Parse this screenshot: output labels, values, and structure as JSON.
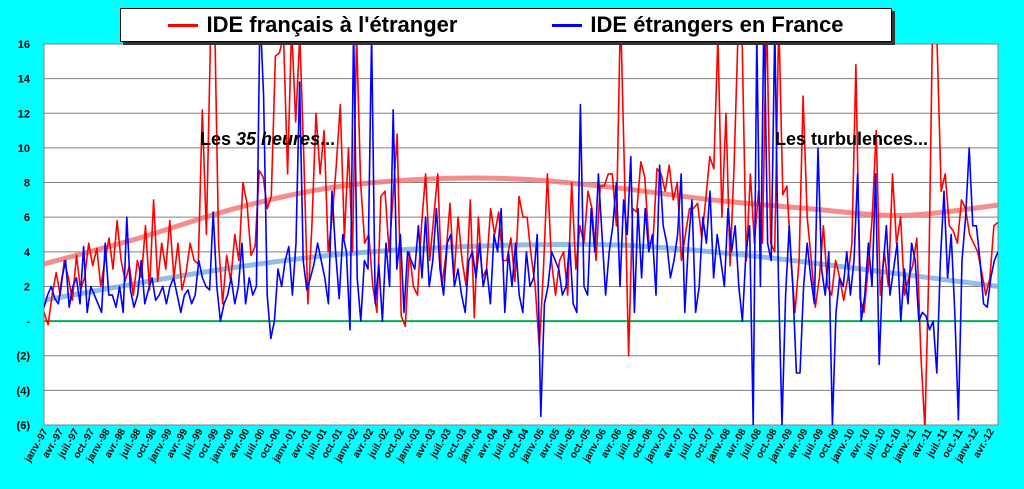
{
  "chart_data": {
    "type": "line",
    "legend_position": "top",
    "grid": true,
    "ylim": [
      -6,
      16
    ],
    "y_ticks": [
      {
        "value": 16,
        "label": "16"
      },
      {
        "value": 14,
        "label": "14"
      },
      {
        "value": 12,
        "label": "12"
      },
      {
        "value": 10,
        "label": "10"
      },
      {
        "value": 8,
        "label": "8"
      },
      {
        "value": 6,
        "label": "6"
      },
      {
        "value": 4,
        "label": "4"
      },
      {
        "value": 2,
        "label": "2"
      },
      {
        "value": 0,
        "label": "-"
      },
      {
        "value": -2,
        "label": "(2)"
      },
      {
        "value": -4,
        "label": "(4)"
      },
      {
        "value": -6,
        "label": "(6)"
      }
    ],
    "x_ticks": [
      "janv.-97",
      "avr.-97",
      "juil.-97",
      "oct.-97",
      "janv.-98",
      "avr.-98",
      "juil.-98",
      "oct.-98",
      "janv.-99",
      "avr.-99",
      "juil.-99",
      "oct.-99",
      "janv.-00",
      "avr.-00",
      "juil.-00",
      "oct.-00",
      "janv.-01",
      "avr.-01",
      "juil.-01",
      "oct.-01",
      "janv.-02",
      "avr.-02",
      "juil.-02",
      "oct.-02",
      "janv.-03",
      "avr.-03",
      "juil.-03",
      "oct.-03",
      "janv.-04",
      "avr.-04",
      "juil.-04",
      "oct.-04",
      "janv.-05",
      "avr.-05",
      "juil.-05",
      "oct.-05",
      "janv.-06",
      "avr.-06",
      "juil.-06",
      "oct.-06",
      "janv.-07",
      "avr.-07",
      "juil.-07",
      "oct.-07",
      "janv.-08",
      "avr.-08",
      "juil.-08",
      "oct.-08",
      "janv.-09",
      "avr.-09",
      "juil.-09",
      "oct.-09",
      "janv.-10",
      "avr.-10",
      "juil.-10",
      "oct.-10",
      "janv.-11",
      "avr.-11",
      "juil.-11",
      "oct.-11",
      "janv.-12",
      "avr.-12"
    ],
    "series": [
      {
        "name": "IDE français à l'étranger",
        "color": "#FF0000",
        "values": [
          0.5,
          -0.2,
          1.5,
          2.8,
          1.5,
          3.5,
          2.5,
          1.2,
          3.8,
          1.8,
          2.5,
          4.5,
          3.2,
          4.2,
          2.0,
          3.5,
          4.8,
          3.0,
          5.8,
          3.5,
          2.3,
          3.2,
          1.5,
          3.5,
          2.5,
          5.5,
          1.8,
          7.0,
          2.3,
          4.5,
          3.0,
          5.8,
          2.5,
          4.5,
          1.8,
          2.8,
          4.5,
          3.5,
          3.3,
          12.2,
          5.0,
          16.0,
          18.0,
          4.5,
          1.0,
          3.8,
          2.3,
          5.0,
          3.5,
          8.0,
          6.8,
          3.8,
          4.3,
          8.7,
          8.3,
          6.5,
          7.2,
          15.3,
          15.5,
          16.5,
          8.5,
          17.0,
          11.5,
          16.5,
          9.5,
          1.0,
          5.5,
          12.0,
          8.5,
          11.0,
          4.0,
          6.0,
          9.0,
          12.5,
          4.8,
          10.0,
          4.0,
          16.5,
          8.0,
          4.5,
          5.0,
          2.0,
          0.5,
          7.2,
          7.5,
          4.0,
          7.2,
          10.8,
          0.3,
          -0.3,
          4.0,
          2.0,
          1.5,
          5.5,
          8.5,
          3.5,
          6.0,
          8.5,
          2.0,
          3.8,
          6.8,
          2.5,
          6.0,
          3.5,
          2.0,
          7.0,
          0.2,
          6.0,
          2.5,
          3.0,
          6.5,
          5.0,
          6.3,
          3.5,
          3.5,
          4.8,
          2.3,
          7.2,
          6.0,
          6.0,
          3.8,
          2.0,
          -1.5,
          2.8,
          8.5,
          3.5,
          1.5,
          3.5,
          4.0,
          1.5,
          8.0,
          3.0,
          5.5,
          4.5,
          7.5,
          6.5,
          3.5,
          7.8,
          7.8,
          8.5,
          8.5,
          5.5,
          18.0,
          8.5,
          -2.0,
          6.5,
          6.3,
          9.2,
          8.3,
          4.5,
          4.5,
          8.8,
          8.5,
          7.5,
          9.0,
          7.0,
          8.0,
          3.5,
          5.0,
          6.5,
          6.5,
          6.8,
          4.8,
          7.0,
          9.5,
          8.8,
          16.5,
          6.0,
          12.0,
          3.2,
          9.0,
          17.0,
          16.0,
          3.5,
          8.5,
          4.5,
          7.5,
          4.5,
          18.0,
          4.5,
          4.0,
          17.5,
          7.3,
          7.8,
          3.5,
          0.5,
          3.5,
          13.0,
          6.0,
          3.5,
          0.8,
          2.5,
          5.5,
          2.0,
          1.5,
          3.5,
          2.5,
          1.2,
          2.5,
          4.5,
          14.8,
          1.3,
          0.5,
          3.0,
          6.0,
          11.0,
          1.5,
          4.0,
          2.0,
          8.5,
          4.5,
          6.0,
          1.5,
          2.5,
          3.2,
          4.8,
          -2.0,
          -6.2,
          3.3,
          19.0,
          16.0,
          7.5,
          8.5,
          5.5,
          5.2,
          4.5,
          7.0,
          6.5,
          5.0,
          4.5,
          4.0,
          2.8,
          1.5,
          2.5,
          5.5,
          5.7
        ]
      },
      {
        "name": "IDE étrangers en France",
        "color": "#0000FF",
        "values": [
          0.8,
          1.5,
          2.0,
          1.3,
          1.0,
          2.5,
          3.5,
          0.8,
          2.0,
          2.5,
          1.0,
          4.3,
          0.5,
          2.0,
          1.5,
          1.0,
          0.5,
          4.5,
          1.5,
          1.5,
          0.8,
          2.0,
          0.5,
          6.0,
          1.8,
          0.8,
          1.5,
          3.5,
          1.0,
          1.8,
          2.5,
          1.2,
          1.5,
          2.0,
          1.0,
          2.0,
          2.5,
          1.5,
          0.5,
          1.5,
          1.8,
          1.0,
          1.5,
          3.5,
          2.5,
          2.0,
          1.8,
          6.3,
          2.0,
          0.0,
          1.0,
          1.5,
          2.5,
          1.0,
          2.0,
          4.5,
          1.0,
          2.5,
          1.5,
          2.0,
          18.0,
          13.0,
          1.5,
          -1.0,
          0.0,
          3.0,
          2.0,
          3.5,
          4.3,
          1.5,
          4.5,
          13.8,
          3.5,
          1.8,
          2.5,
          3.3,
          4.5,
          3.5,
          2.5,
          1.0,
          7.5,
          4.0,
          1.3,
          5.0,
          4.0,
          -0.5,
          17.0,
          2.5,
          0.0,
          3.5,
          3.0,
          16.5,
          1.0,
          3.3,
          0.0,
          4.5,
          2.0,
          12.2,
          3.0,
          5.0,
          0.5,
          4.0,
          3.5,
          3.0,
          5.5,
          2.5,
          6.0,
          2.0,
          3.5,
          6.5,
          3.0,
          1.5,
          4.5,
          5.0,
          2.0,
          3.0,
          1.5,
          0.5,
          3.5,
          4.0,
          2.5,
          4.5,
          2.0,
          3.0,
          1.0,
          5.0,
          4.0,
          6.5,
          0.5,
          4.0,
          2.0,
          4.5,
          1.5,
          0.5,
          4.0,
          2.0,
          2.5,
          5.0,
          -5.5,
          1.0,
          2.0,
          4.0,
          3.5,
          3.0,
          1.5,
          2.0,
          4.5,
          1.0,
          0.5,
          12.5,
          2.0,
          1.5,
          6.5,
          4.0,
          8.5,
          5.0,
          1.5,
          4.0,
          5.5,
          8.0,
          2.0,
          7.0,
          5.0,
          9.5,
          0.5,
          6.5,
          2.5,
          6.5,
          4.0,
          5.0,
          1.5,
          9.0,
          5.5,
          4.5,
          2.5,
          3.5,
          5.0,
          8.5,
          0.5,
          4.5,
          7.0,
          0.5,
          2.0,
          6.0,
          4.5,
          7.5,
          2.5,
          5.0,
          3.5,
          2.0,
          6.5,
          4.0,
          5.5,
          2.0,
          0.0,
          4.0,
          5.5,
          -6.0,
          16.5,
          2.0,
          18.0,
          4.5,
          3.5,
          17.0,
          2.5,
          -6.0,
          1.5,
          5.5,
          2.0,
          -3.0,
          -3.0,
          2.0,
          4.5,
          2.5,
          1.0,
          10.0,
          3.0,
          1.5,
          4.0,
          -6.0,
          0.5,
          2.5,
          2.0,
          4.0,
          1.5,
          3.5,
          8.5,
          0.0,
          1.5,
          4.5,
          2.0,
          8.5,
          -2.5,
          3.0,
          5.5,
          1.5,
          3.0,
          4.5,
          0.0,
          3.0,
          1.0,
          4.5,
          3.5,
          0.0,
          0.5,
          0.3,
          -0.5,
          0.0,
          -3.0,
          3.5,
          7.5,
          2.5,
          5.0,
          0.5,
          -5.7,
          3.5,
          6.0,
          10.0,
          5.5,
          5.5,
          3.5,
          1.0,
          0.8,
          2.5,
          3.5,
          4.0
        ]
      }
    ],
    "trendlines": [
      {
        "color": "#F07A7A",
        "x_fraction": [
          0,
          0.1,
          0.2,
          0.3,
          0.4,
          0.5,
          0.6,
          0.7,
          0.8,
          0.9,
          1.0
        ],
        "values": [
          3.3,
          4.8,
          6.5,
          7.7,
          8.2,
          8.2,
          7.7,
          7.0,
          6.5,
          6.1,
          6.7
        ]
      },
      {
        "color": "#7FB2E5",
        "x_fraction": [
          0,
          0.1,
          0.2,
          0.3,
          0.4,
          0.5,
          0.6,
          0.7,
          0.8,
          0.9,
          1.0
        ],
        "values": [
          1.2,
          2.2,
          3.1,
          3.8,
          4.2,
          4.4,
          4.4,
          4.0,
          3.4,
          2.7,
          2.0
        ]
      }
    ],
    "zero_line_color": "#00B050",
    "annotations": [
      {
        "id": "annot-35h",
        "parts": [
          "Les ",
          "35 heures",
          "..."
        ]
      },
      {
        "id": "annot-turb",
        "parts": [
          "Les turbulences..."
        ]
      }
    ]
  },
  "legend": {
    "items": [
      {
        "label": "IDE français à l'étranger",
        "color": "#FF0000"
      },
      {
        "label": "IDE étrangers en France",
        "color": "#0000FF"
      }
    ]
  }
}
